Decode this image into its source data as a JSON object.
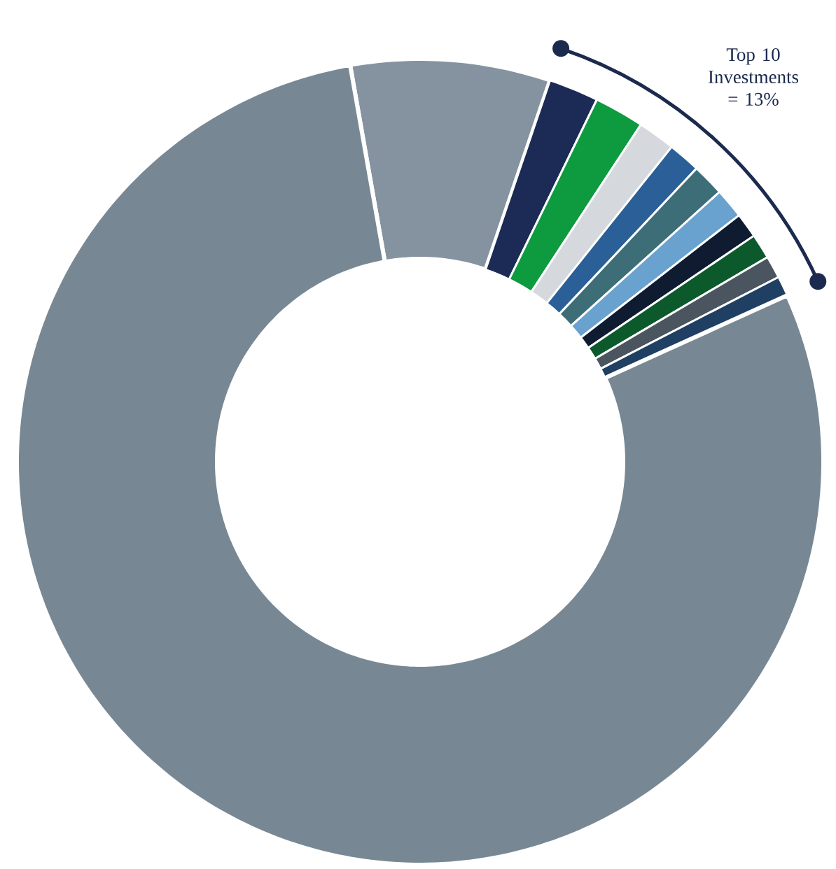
{
  "chart_data": {
    "type": "donut",
    "categories": [
      null,
      null,
      null,
      null,
      null,
      null,
      null,
      null,
      null,
      null,
      null,
      null
    ],
    "values": [
      8,
      2,
      2,
      1.5,
      1.3,
      1.3,
      1.2,
      1,
      1,
      0.9,
      0.8,
      79
    ],
    "colors": [
      "#8593a0",
      "#1c2b55",
      "#0e9a3f",
      "#d5d9dd",
      "#2a5f97",
      "#3d6e78",
      "#6aa2cf",
      "#0f1b30",
      "#0c5a2c",
      "#4b5560",
      "#1f3f63",
      "#778894"
    ],
    "annotations": [
      "Top 10 Investments = 13%"
    ]
  }
}
